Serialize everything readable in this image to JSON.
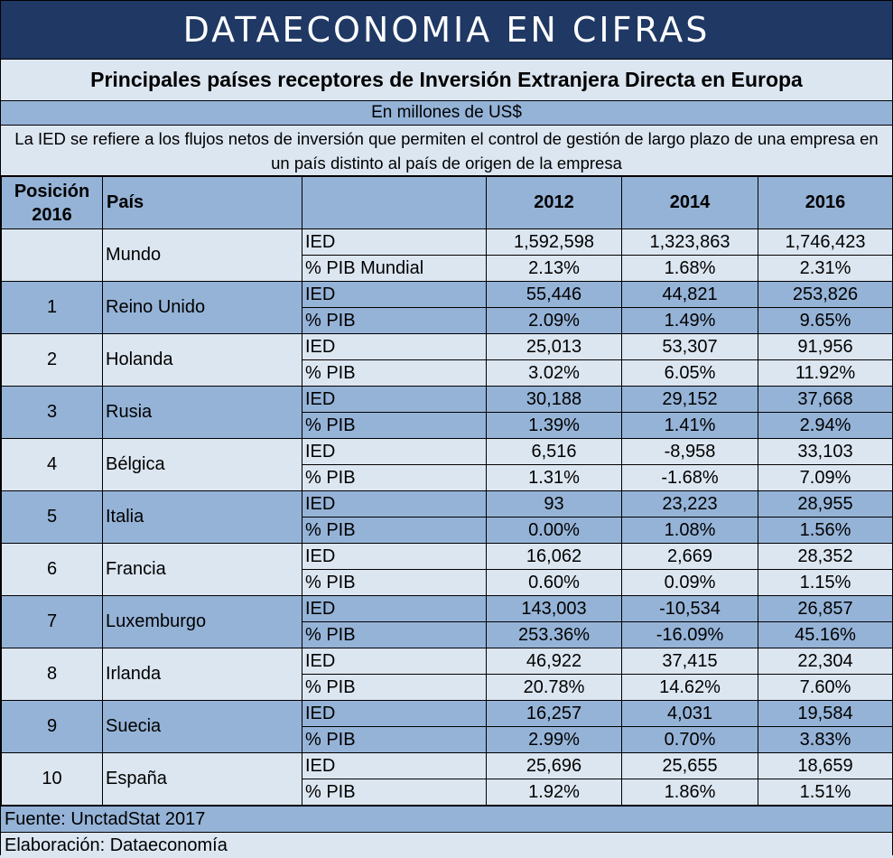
{
  "banner": "DATAECONOMIA EN CIFRAS",
  "title": "Principales países receptores de Inversión Extranjera Directa en Europa",
  "units": "En millones de US$",
  "note": "La IED se refiere a los flujos netos de inversión que permiten el control de gestión de largo plazo de una empresa en un país distinto al país de origen de la empresa",
  "headers": {
    "position": "Posición 2016",
    "country": "País",
    "metric": "",
    "y2012": "2012",
    "y2014": "2014",
    "y2016": "2016"
  },
  "rows": [
    {
      "rank": "",
      "country": "Mundo",
      "band": "a",
      "ied": {
        "label": "IED",
        "v2012": "1,592,598",
        "v2014": "1,323,863",
        "v2016": "1,746,423"
      },
      "pib": {
        "label": "% PIB Mundial",
        "v2012": "2.13%",
        "v2014": "1.68%",
        "v2016": "2.31%"
      }
    },
    {
      "rank": "1",
      "country": "Reino Unido",
      "band": "b",
      "ied": {
        "label": "IED",
        "v2012": "55,446",
        "v2014": "44,821",
        "v2016": "253,826"
      },
      "pib": {
        "label": "% PIB",
        "v2012": "2.09%",
        "v2014": "1.49%",
        "v2016": "9.65%"
      }
    },
    {
      "rank": "2",
      "country": "Holanda",
      "band": "a",
      "ied": {
        "label": "IED",
        "v2012": "25,013",
        "v2014": "53,307",
        "v2016": "91,956"
      },
      "pib": {
        "label": "% PIB",
        "v2012": "3.02%",
        "v2014": "6.05%",
        "v2016": "11.92%"
      }
    },
    {
      "rank": "3",
      "country": "Rusia",
      "band": "b",
      "ied": {
        "label": "IED",
        "v2012": "30,188",
        "v2014": "29,152",
        "v2016": "37,668"
      },
      "pib": {
        "label": "% PIB",
        "v2012": "1.39%",
        "v2014": "1.41%",
        "v2016": "2.94%"
      }
    },
    {
      "rank": "4",
      "country": "Bélgica",
      "band": "a",
      "ied": {
        "label": "IED",
        "v2012": "6,516",
        "v2014": "-8,958",
        "v2016": "33,103"
      },
      "pib": {
        "label": "% PIB",
        "v2012": "1.31%",
        "v2014": "-1.68%",
        "v2016": "7.09%"
      }
    },
    {
      "rank": "5",
      "country": "Italia",
      "band": "b",
      "ied": {
        "label": "IED",
        "v2012": "93",
        "v2014": "23,223",
        "v2016": "28,955"
      },
      "pib": {
        "label": "% PIB",
        "v2012": "0.00%",
        "v2014": "1.08%",
        "v2016": "1.56%"
      }
    },
    {
      "rank": "6",
      "country": "Francia",
      "band": "a",
      "ied": {
        "label": "IED",
        "v2012": "16,062",
        "v2014": "2,669",
        "v2016": "28,352"
      },
      "pib": {
        "label": "% PIB",
        "v2012": "0.60%",
        "v2014": "0.09%",
        "v2016": "1.15%"
      }
    },
    {
      "rank": "7",
      "country": "Luxemburgo",
      "band": "b",
      "ied": {
        "label": "IED",
        "v2012": "143,003",
        "v2014": "-10,534",
        "v2016": "26,857"
      },
      "pib": {
        "label": "% PIB",
        "v2012": "253.36%",
        "v2014": "-16.09%",
        "v2016": "45.16%"
      }
    },
    {
      "rank": "8",
      "country": "Irlanda",
      "band": "a",
      "ied": {
        "label": "IED",
        "v2012": "46,922",
        "v2014": "37,415",
        "v2016": "22,304"
      },
      "pib": {
        "label": "% PIB",
        "v2012": "20.78%",
        "v2014": "14.62%",
        "v2016": "7.60%"
      }
    },
    {
      "rank": "9",
      "country": "Suecia",
      "band": "b",
      "ied": {
        "label": "IED",
        "v2012": "16,257",
        "v2014": "4,031",
        "v2016": "19,584"
      },
      "pib": {
        "label": "% PIB",
        "v2012": "2.99%",
        "v2014": "0.70%",
        "v2016": "3.83%"
      }
    },
    {
      "rank": "10",
      "country": "España",
      "band": "a",
      "ied": {
        "label": "IED",
        "v2012": "25,696",
        "v2014": "25,655",
        "v2016": "18,659"
      },
      "pib": {
        "label": "% PIB",
        "v2012": "1.92%",
        "v2014": "1.86%",
        "v2016": "1.51%"
      }
    }
  ],
  "footer": {
    "source": "Fuente: UnctadStat 2017",
    "elaboration": "Elaboración: Dataeconomía"
  },
  "colors": {
    "banner": "#1f3864",
    "light_band": "#dce6f1",
    "dark_band": "#95b3d7"
  }
}
